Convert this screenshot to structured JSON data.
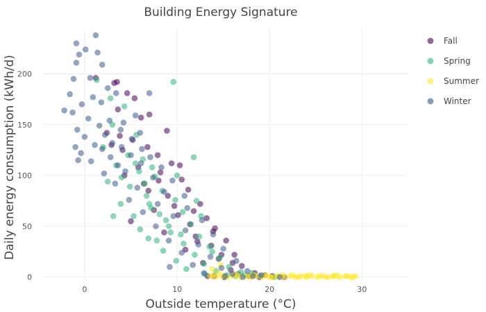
{
  "chart_data": {
    "type": "scatter",
    "title": "Building Energy Signature",
    "xlabel": "Outside temperature (°C)",
    "ylabel": "Daily energy consumption (kWh/d)",
    "xlim": [
      -4.5,
      35
    ],
    "ylim": [
      -5,
      244
    ],
    "xticks": [
      0,
      10,
      20,
      30
    ],
    "yticks": [
      0,
      50,
      100,
      150,
      200
    ],
    "grid": true,
    "legend_position": "top-right",
    "series": [
      {
        "name": "Fall",
        "color": "#440154",
        "points": [
          [
            1.2,
            196
          ],
          [
            3.5,
            192
          ],
          [
            3.2,
            191
          ],
          [
            4.6,
            181
          ],
          [
            5.4,
            176
          ],
          [
            7.0,
            160
          ],
          [
            6.1,
            157
          ],
          [
            8.9,
            144
          ],
          [
            2.4,
            142
          ],
          [
            3.8,
            139
          ],
          [
            5.2,
            135
          ],
          [
            6.8,
            128
          ],
          [
            4.1,
            125
          ],
          [
            7.9,
            120
          ],
          [
            9.4,
            112
          ],
          [
            5.8,
            108
          ],
          [
            8.2,
            103
          ],
          [
            10.5,
            96
          ],
          [
            6.4,
            92
          ],
          [
            11.2,
            86
          ],
          [
            9.0,
            80
          ],
          [
            12.5,
            72
          ],
          [
            7.5,
            66
          ],
          [
            10.1,
            61
          ],
          [
            13.2,
            58
          ],
          [
            11.4,
            52
          ],
          [
            14.1,
            48
          ],
          [
            8.6,
            44
          ],
          [
            12.0,
            40
          ],
          [
            15.3,
            36
          ],
          [
            13.7,
            31
          ],
          [
            10.9,
            27
          ],
          [
            16.2,
            22
          ],
          [
            14.5,
            18
          ],
          [
            12.8,
            14
          ],
          [
            17.0,
            11
          ],
          [
            15.8,
            7
          ],
          [
            18.4,
            4
          ],
          [
            16.6,
            3
          ],
          [
            19.5,
            2
          ],
          [
            14.0,
            1
          ],
          [
            17.8,
            1
          ],
          [
            20.3,
            1
          ],
          [
            21.6,
            0
          ],
          [
            13.3,
            1
          ],
          [
            15.1,
            0
          ],
          [
            18.9,
            0
          ],
          [
            5.0,
            55
          ],
          [
            6.9,
            85
          ],
          [
            9.7,
            70
          ],
          [
            4.3,
            100
          ],
          [
            12.2,
            35
          ],
          [
            10.3,
            110
          ],
          [
            8.0,
            95
          ],
          [
            2.9,
            130
          ],
          [
            3.6,
            165
          ],
          [
            11.8,
            65
          ],
          [
            13.9,
            45
          ],
          [
            14.8,
            22
          ],
          [
            16.0,
            14
          ]
        ]
      },
      {
        "name": "Spring",
        "color": "#2eb37c",
        "points": [
          [
            9.6,
            192
          ],
          [
            1.3,
            194
          ],
          [
            2.8,
            176
          ],
          [
            4.3,
            168
          ],
          [
            3.0,
            150
          ],
          [
            5.6,
            140
          ],
          [
            2.0,
            128
          ],
          [
            4.7,
            120
          ],
          [
            6.3,
            116
          ],
          [
            3.4,
            110
          ],
          [
            5.9,
            104
          ],
          [
            7.6,
            99
          ],
          [
            2.5,
            94
          ],
          [
            4.9,
            89
          ],
          [
            8.4,
            85
          ],
          [
            6.7,
            80
          ],
          [
            9.8,
            76
          ],
          [
            3.9,
            72
          ],
          [
            7.2,
            68
          ],
          [
            10.6,
            64
          ],
          [
            5.3,
            60
          ],
          [
            8.8,
            56
          ],
          [
            11.5,
            52
          ],
          [
            3.1,
            60
          ],
          [
            6.0,
            47
          ],
          [
            9.3,
            44
          ],
          [
            12.4,
            40
          ],
          [
            7.8,
            36
          ],
          [
            10.7,
            33
          ],
          [
            13.5,
            30
          ],
          [
            8.5,
            26
          ],
          [
            11.9,
            22
          ],
          [
            14.6,
            19
          ],
          [
            9.9,
            16
          ],
          [
            12.9,
            13
          ],
          [
            15.6,
            10
          ],
          [
            11.0,
            8
          ],
          [
            14.2,
            6
          ],
          [
            16.9,
            5
          ],
          [
            18.1,
            4
          ],
          [
            13.0,
            3
          ],
          [
            15.4,
            2
          ],
          [
            17.3,
            2
          ],
          [
            19.0,
            1
          ],
          [
            16.3,
            1
          ],
          [
            20.5,
            0
          ],
          [
            11.8,
            118
          ],
          [
            4.0,
            98
          ],
          [
            6.5,
            92
          ],
          [
            7.3,
            108
          ],
          [
            5.5,
            112
          ],
          [
            10.0,
            100
          ],
          [
            8.1,
            62
          ],
          [
            12.1,
            75
          ],
          [
            9.1,
            50
          ],
          [
            6.9,
            38
          ],
          [
            10.4,
            42
          ],
          [
            13.8,
            25
          ],
          [
            12.6,
            60
          ],
          [
            7.0,
            72
          ]
        ]
      },
      {
        "name": "Summer",
        "color": "#fde725",
        "points": [
          [
            13.6,
            1
          ],
          [
            14.2,
            0
          ],
          [
            14.9,
            1
          ],
          [
            15.5,
            0
          ],
          [
            16.1,
            1
          ],
          [
            16.8,
            0
          ],
          [
            17.4,
            1
          ],
          [
            18.0,
            0
          ],
          [
            18.6,
            1
          ],
          [
            19.2,
            0
          ],
          [
            19.8,
            1
          ],
          [
            20.4,
            0
          ],
          [
            21.0,
            1
          ],
          [
            21.6,
            0
          ],
          [
            22.2,
            1
          ],
          [
            22.8,
            0
          ],
          [
            23.4,
            1
          ],
          [
            24.0,
            0
          ],
          [
            24.6,
            1
          ],
          [
            25.2,
            0
          ],
          [
            25.8,
            1
          ],
          [
            26.4,
            0
          ],
          [
            27.0,
            1
          ],
          [
            27.6,
            0
          ],
          [
            28.2,
            1
          ],
          [
            28.8,
            0
          ],
          [
            29.3,
            1
          ],
          [
            13.9,
            2
          ],
          [
            15.1,
            1
          ],
          [
            16.5,
            2
          ],
          [
            17.9,
            1
          ],
          [
            19.5,
            2
          ],
          [
            20.9,
            1
          ],
          [
            22.5,
            2
          ],
          [
            23.9,
            1
          ],
          [
            25.4,
            1
          ],
          [
            26.9,
            1
          ],
          [
            28.4,
            1
          ],
          [
            14.5,
            4
          ],
          [
            13.8,
            8
          ],
          [
            14.7,
            12
          ],
          [
            16.2,
            3
          ],
          [
            18.3,
            2
          ],
          [
            21.4,
            2
          ],
          [
            24.3,
            2
          ],
          [
            27.3,
            2
          ],
          [
            20.1,
            0
          ],
          [
            23.1,
            0
          ],
          [
            26.1,
            0
          ],
          [
            29.0,
            0
          ]
        ]
      },
      {
        "name": "Winter",
        "color": "#3a5b8c",
        "points": [
          [
            1.2,
            238
          ],
          [
            -0.9,
            230
          ],
          [
            0.1,
            224
          ],
          [
            -0.6,
            219
          ],
          [
            1.4,
            221
          ],
          [
            -0.9,
            211
          ],
          [
            1.9,
            209
          ],
          [
            -1.2,
            195
          ],
          [
            0.6,
            196
          ],
          [
            -1.6,
            180
          ],
          [
            2.5,
            186
          ],
          [
            -2.2,
            164
          ],
          [
            0.9,
            177
          ],
          [
            3.4,
            181
          ],
          [
            -0.3,
            170
          ],
          [
            1.8,
            172
          ],
          [
            -1.3,
            162
          ],
          [
            0.4,
            156
          ],
          [
            2.7,
            154
          ],
          [
            -0.8,
            145
          ],
          [
            1.6,
            149
          ],
          [
            4.2,
            152
          ],
          [
            0.0,
            138
          ],
          [
            2.2,
            140
          ],
          [
            3.9,
            145
          ],
          [
            -1.0,
            128
          ],
          [
            1.1,
            130
          ],
          [
            3.0,
            132
          ],
          [
            5.1,
            136
          ],
          [
            -0.4,
            122
          ],
          [
            1.9,
            126
          ],
          [
            4.0,
            128
          ],
          [
            6.2,
            126
          ],
          [
            0.7,
            114
          ],
          [
            2.8,
            118
          ],
          [
            5.0,
            120
          ],
          [
            7.1,
            118
          ],
          [
            -0.7,
            115
          ],
          [
            3.6,
            110
          ],
          [
            6.1,
            112
          ],
          [
            8.3,
            108
          ],
          [
            2.1,
            102
          ],
          [
            4.4,
            104
          ],
          [
            7.4,
            98
          ],
          [
            9.5,
            95
          ],
          [
            3.3,
            92
          ],
          [
            5.7,
            88
          ],
          [
            8.6,
            84
          ],
          [
            10.8,
            80
          ],
          [
            4.8,
            76
          ],
          [
            7.9,
            72
          ],
          [
            11.1,
            68
          ],
          [
            6.3,
            64
          ],
          [
            9.6,
            60
          ],
          [
            12.7,
            56
          ],
          [
            7.7,
            50
          ],
          [
            10.9,
            46
          ],
          [
            13.9,
            42
          ],
          [
            9.1,
            36
          ],
          [
            12.3,
            32
          ],
          [
            15.0,
            28
          ],
          [
            10.5,
            24
          ],
          [
            13.6,
            20
          ],
          [
            16.4,
            16
          ],
          [
            11.7,
            12
          ],
          [
            14.8,
            9
          ],
          [
            17.6,
            6
          ],
          [
            12.9,
            4
          ],
          [
            16.0,
            3
          ],
          [
            19.1,
            2
          ],
          [
            15.2,
            1
          ],
          [
            18.2,
            1
          ],
          [
            21.1,
            0
          ],
          [
            17.1,
            0
          ],
          [
            9.2,
            10
          ],
          [
            7.0,
            181
          ],
          [
            6.0,
            142
          ],
          [
            5.5,
            159
          ]
        ]
      }
    ]
  }
}
